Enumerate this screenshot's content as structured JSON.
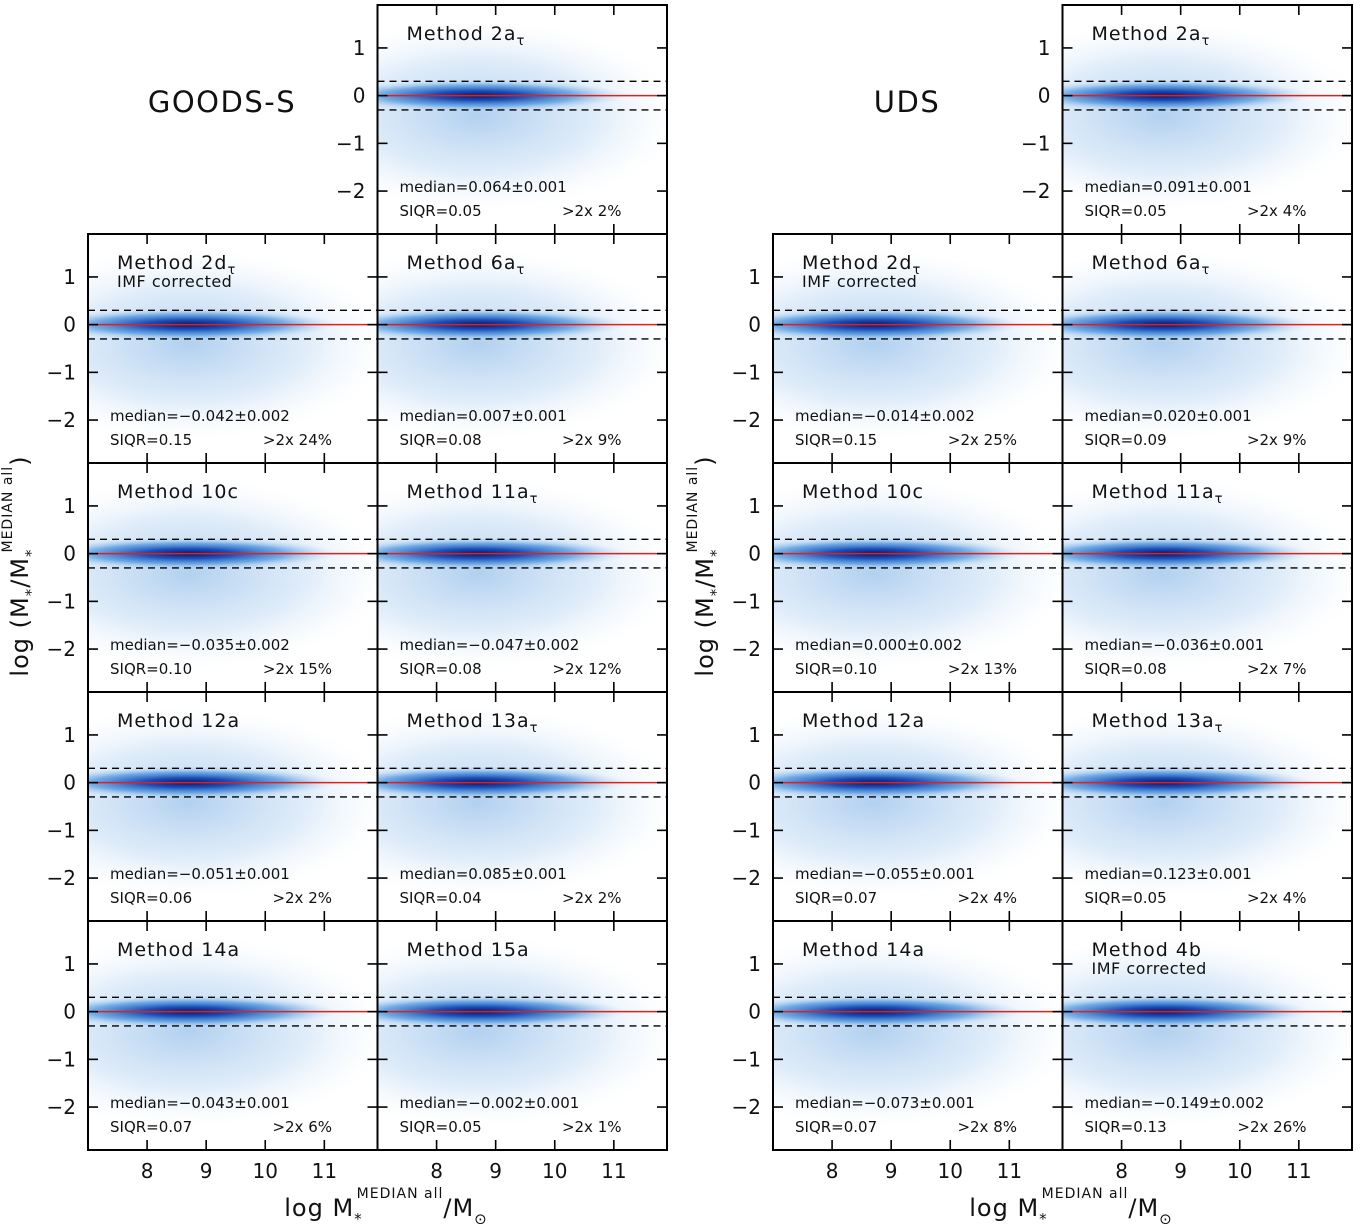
{
  "chart_data": [
    {
      "type": "hist2d-grid",
      "title": "GOODS-S",
      "xlabel": {
        "text": "log M",
        "sub": "*",
        "sup": "MEDIAN all",
        "tail": "/M",
        "tail_sub": "⊙"
      },
      "ylabel": {
        "text": "log (M",
        "sub": "*",
        "mid": "/M",
        "mid_sub": "*",
        "sup": "MEDIAN all",
        "tail": ")"
      },
      "xlim": [
        7.0,
        11.9
      ],
      "ylim": [
        -2.9,
        1.9
      ],
      "xticks": [
        8,
        9,
        10,
        11
      ],
      "yticks": [
        1,
        0,
        {
          "value": -1,
          "label": "−1"
        },
        {
          "value": -2,
          "label": "−2"
        }
      ],
      "ref_line": 0,
      "ref_color": "#e0201b",
      "dashed_lines": [
        0.3,
        -0.3
      ],
      "panels": [
        {
          "label": "Method 2a",
          "label_sub": "τ",
          "median": "median=0.064±0.001",
          "siqr": "SIQR=0.05",
          "outliers": ">2x 2%"
        },
        {
          "label": "Method 2d",
          "label_sub": "τ",
          "note": "IMF corrected",
          "median": "median=−0.042±0.002",
          "siqr": "SIQR=0.15",
          "outliers": ">2x 24%"
        },
        {
          "label": "Method 6a",
          "label_sub": "τ",
          "median": "median=0.007±0.001",
          "siqr": "SIQR=0.08",
          "outliers": ">2x 9%"
        },
        {
          "label": "Method 10c",
          "median": "median=−0.035±0.002",
          "siqr": "SIQR=0.10",
          "outliers": ">2x 15%"
        },
        {
          "label": "Method 11a",
          "label_sub": "τ",
          "median": "median=−0.047±0.002",
          "siqr": "SIQR=0.08",
          "outliers": ">2x 12%"
        },
        {
          "label": "Method 12a",
          "median": "median=−0.051±0.001",
          "siqr": "SIQR=0.06",
          "outliers": ">2x 2%"
        },
        {
          "label": "Method 13a",
          "label_sub": "τ",
          "median": "median=0.085±0.001",
          "siqr": "SIQR=0.04",
          "outliers": ">2x 2%"
        },
        {
          "label": "Method 14a",
          "median": "median=−0.043±0.001",
          "siqr": "SIQR=0.07",
          "outliers": ">2x 6%"
        },
        {
          "label": "Method 15a",
          "median": "median=−0.002±0.001",
          "siqr": "SIQR=0.05",
          "outliers": ">2x 1%"
        }
      ]
    },
    {
      "type": "hist2d-grid",
      "title": "UDS",
      "xlabel": {
        "text": "log M",
        "sub": "*",
        "sup": "MEDIAN all",
        "tail": "/M",
        "tail_sub": "⊙"
      },
      "ylabel": {
        "text": "log (M",
        "sub": "*",
        "mid": "/M",
        "mid_sub": "*",
        "sup": "MEDIAN all",
        "tail": ")"
      },
      "xlim": [
        7.0,
        11.9
      ],
      "ylim": [
        -2.9,
        1.9
      ],
      "xticks": [
        8,
        9,
        10,
        11
      ],
      "yticks": [
        1,
        0,
        {
          "value": -1,
          "label": "−1"
        },
        {
          "value": -2,
          "label": "−2"
        }
      ],
      "ref_line": 0,
      "ref_color": "#e0201b",
      "dashed_lines": [
        0.3,
        -0.3
      ],
      "panels": [
        {
          "label": "Method 2a",
          "label_sub": "τ",
          "median": "median=0.091±0.001",
          "siqr": "SIQR=0.05",
          "outliers": ">2x 4%"
        },
        {
          "label": "Method 2d",
          "label_sub": "τ",
          "note": "IMF corrected",
          "median": "median=−0.014±0.002",
          "siqr": "SIQR=0.15",
          "outliers": ">2x 25%"
        },
        {
          "label": "Method 6a",
          "label_sub": "τ",
          "median": "median=0.020±0.001",
          "siqr": "SIQR=0.09",
          "outliers": ">2x 9%"
        },
        {
          "label": "Method 10c",
          "median": "median=0.000±0.002",
          "siqr": "SIQR=0.10",
          "outliers": ">2x 13%"
        },
        {
          "label": "Method 11a",
          "label_sub": "τ",
          "median": "median=−0.036±0.001",
          "siqr": "SIQR=0.08",
          "outliers": ">2x 7%"
        },
        {
          "label": "Method 12a",
          "median": "median=−0.055±0.001",
          "siqr": "SIQR=0.07",
          "outliers": ">2x 4%"
        },
        {
          "label": "Method 13a",
          "label_sub": "τ",
          "median": "median=0.123±0.001",
          "siqr": "SIQR=0.05",
          "outliers": ">2x 4%"
        },
        {
          "label": "Method 14a",
          "median": "median=−0.073±0.001",
          "siqr": "SIQR=0.07",
          "outliers": ">2x 8%"
        },
        {
          "label": "Method 4b",
          "note": "IMF corrected",
          "median": "median=−0.149±0.002",
          "siqr": "SIQR=0.13",
          "outliers": ">2x 26%"
        }
      ]
    }
  ]
}
